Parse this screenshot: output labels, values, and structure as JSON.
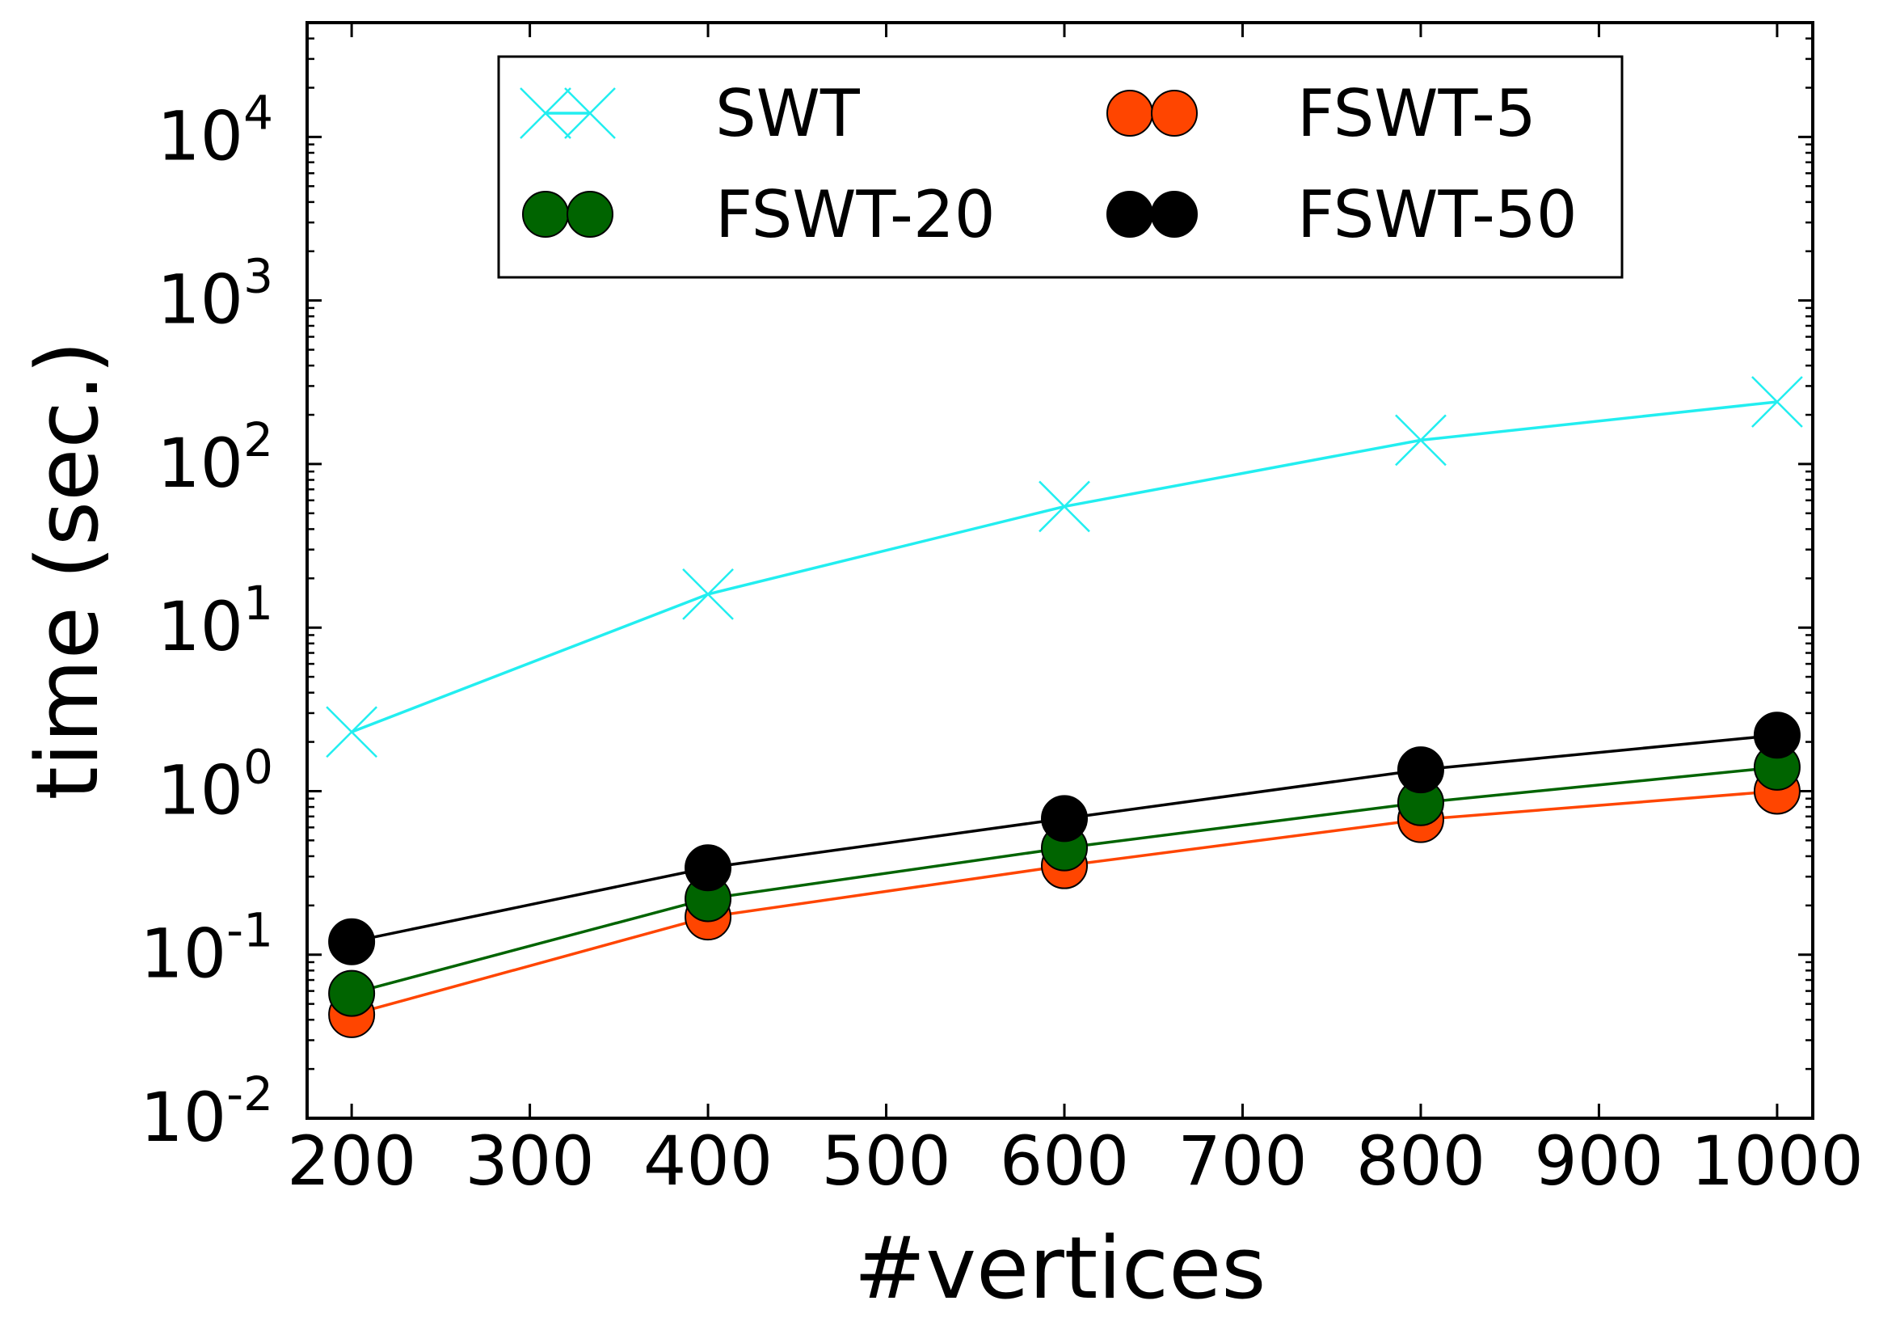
{
  "chart_data": {
    "type": "line",
    "xlabel": "#vertices",
    "ylabel": "time (sec.)",
    "xlim": [
      175,
      1020
    ],
    "ylim": [
      0.01,
      50000
    ],
    "yscale": "log",
    "x_ticks": [
      200,
      300,
      400,
      500,
      600,
      700,
      800,
      900,
      1000
    ],
    "x_tick_labels": [
      "200",
      "300",
      "400",
      "500",
      "600",
      "700",
      "800",
      "900",
      "1000"
    ],
    "y_ticks": [
      0.01,
      0.1,
      1,
      10,
      100,
      1000,
      10000
    ],
    "y_tick_labels": [
      {
        "base": "10",
        "exp": "-2"
      },
      {
        "base": "10",
        "exp": "-1"
      },
      {
        "base": "10",
        "exp": "0"
      },
      {
        "base": "10",
        "exp": "1"
      },
      {
        "base": "10",
        "exp": "2"
      },
      {
        "base": "10",
        "exp": "3"
      },
      {
        "base": "10",
        "exp": "4"
      }
    ],
    "x": [
      200,
      400,
      600,
      800,
      1000
    ],
    "series": [
      {
        "name": "SWT",
        "marker": "x",
        "color": "#22eef0",
        "values": [
          2.3,
          16,
          55,
          140,
          240
        ]
      },
      {
        "name": "FSWT-5",
        "marker": "circle",
        "color": "#ff4500",
        "values": [
          0.043,
          0.17,
          0.35,
          0.67,
          1.0
        ]
      },
      {
        "name": "FSWT-20",
        "marker": "circle",
        "color": "#006400",
        "values": [
          0.058,
          0.22,
          0.45,
          0.85,
          1.4
        ]
      },
      {
        "name": "FSWT-50",
        "marker": "circle",
        "color": "#000000",
        "values": [
          0.12,
          0.34,
          0.68,
          1.35,
          2.2
        ]
      }
    ],
    "legend": {
      "position": "top-center",
      "columns": 2
    },
    "grid": false
  }
}
